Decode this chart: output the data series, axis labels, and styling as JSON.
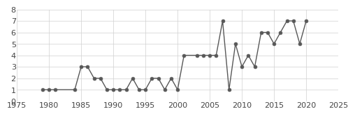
{
  "years": [
    1979,
    1980,
    1981,
    1984,
    1985,
    1986,
    1987,
    1988,
    1989,
    1990,
    1991,
    1992,
    1993,
    1994,
    1995,
    1996,
    1997,
    1998,
    1999,
    2000,
    2001,
    2003,
    2004,
    2005,
    2006,
    2007,
    2008,
    2009,
    2010,
    2011,
    2012,
    2013,
    2014,
    2015,
    2016,
    2017,
    2018,
    2019,
    2020
  ],
  "values": [
    1,
    1,
    1,
    1,
    3,
    3,
    2,
    2,
    1,
    1,
    1,
    1,
    2,
    1,
    1,
    2,
    2,
    1,
    2,
    1,
    4,
    4,
    4,
    4,
    4,
    7,
    1,
    5,
    3,
    4,
    3,
    6,
    6,
    5,
    6,
    7,
    7,
    5,
    7
  ],
  "xlim": [
    1975,
    2025
  ],
  "ylim": [
    0,
    8
  ],
  "xticks": [
    1975,
    1980,
    1985,
    1990,
    1995,
    2000,
    2005,
    2010,
    2015,
    2020,
    2025
  ],
  "yticks": [
    0,
    1,
    2,
    3,
    4,
    5,
    6,
    7,
    8
  ],
  "line_color": "#585858",
  "marker_color": "#585858",
  "bg_color": "#ffffff",
  "grid_color": "#d0d0d0",
  "tick_fontsize": 8,
  "tick_color": "#444444"
}
